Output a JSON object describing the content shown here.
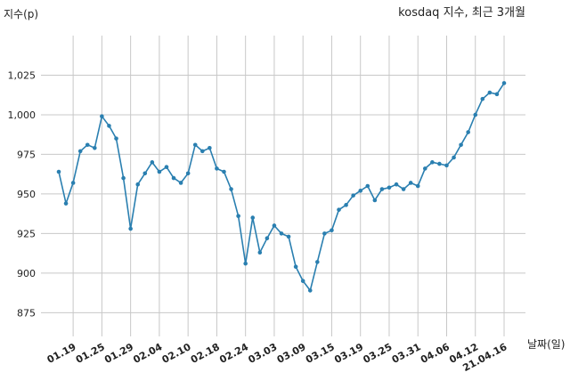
{
  "chart_data": {
    "type": "line",
    "title": "kosdaq 지수, 최근 3개월",
    "ylabel": "지수(p)",
    "xlabel": "날짜(일)",
    "ylim": [
      860,
      1050
    ],
    "yticks": [
      875,
      900,
      925,
      950,
      975,
      1000,
      1025
    ],
    "ytick_labels": [
      "875",
      "900",
      "925",
      "950",
      "975",
      "1,000",
      "1,025"
    ],
    "xtick_labels": [
      "01.19",
      "01.25",
      "01.29",
      "02.04",
      "02.10",
      "02.18",
      "02.24",
      "03.03",
      "03.09",
      "03.15",
      "03.19",
      "03.25",
      "03.31",
      "04.06",
      "04.12",
      "21.04.16"
    ],
    "xtick_index": [
      3,
      7,
      11,
      15,
      19,
      23,
      27,
      31,
      35,
      39,
      43,
      47,
      51,
      55,
      59,
      63
    ],
    "grid": true,
    "color": "#2a7fb0",
    "series": [
      {
        "values": [
          964,
          944,
          957,
          977,
          981,
          979,
          999,
          993,
          985,
          960,
          928,
          956,
          963,
          970,
          964,
          967,
          960,
          957,
          963,
          981,
          977,
          979,
          966,
          964,
          953,
          936,
          906,
          935,
          913,
          922,
          930,
          925,
          923,
          904,
          895,
          889,
          907,
          925,
          927,
          940,
          943,
          949,
          952,
          955,
          946,
          953,
          954,
          956,
          953,
          957,
          955,
          966,
          970,
          969,
          968,
          973,
          981,
          989,
          1000,
          1010,
          1014,
          1013,
          1020
        ]
      }
    ]
  }
}
